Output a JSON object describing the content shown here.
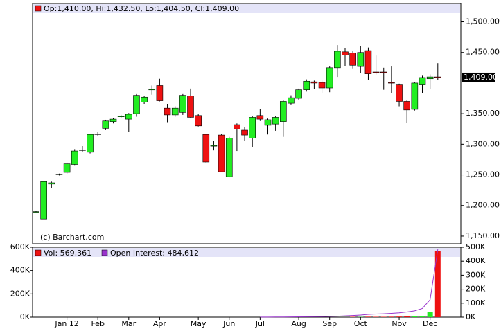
{
  "chart_data": [
    {
      "type": "candlestick",
      "legend": "Op:1,410.00, Hi:1,432.50, Lo:1,404.50, Cl:1,409.00",
      "credit": "(c) Barchart.com",
      "categories": [
        null,
        null,
        null,
        null,
        "Jan 12",
        null,
        null,
        null,
        "Feb",
        null,
        null,
        null,
        "Mar",
        null,
        null,
        null,
        "Apr",
        null,
        null,
        null,
        null,
        "May",
        null,
        null,
        null,
        "Jun",
        null,
        null,
        null,
        "Jul",
        null,
        null,
        null,
        null,
        "Aug",
        null,
        null,
        null,
        "Sep",
        null,
        null,
        null,
        "Oct",
        null,
        null,
        null,
        null,
        "Nov",
        null,
        null,
        null,
        "Dec",
        null
      ],
      "open": [
        1190,
        1178,
        1235,
        1250,
        1254,
        1267,
        1290,
        1287,
        1316,
        1326,
        1337,
        1345,
        1341,
        1350,
        1369,
        1389,
        1396,
        1359,
        1348,
        1352,
        1379,
        1347,
        1316,
        1298,
        1315,
        1247,
        1332,
        1323,
        1310,
        1347,
        1331,
        1333,
        1337,
        1367,
        1375,
        1389,
        1402,
        1401,
        1392,
        1425,
        1451,
        1449,
        1427,
        1453,
        1418,
        1418,
        1401,
        1397,
        1370,
        1357,
        1397,
        1407,
        1410
      ],
      "high": [
        1191,
        1239,
        1239,
        1252,
        1270,
        1292,
        1297,
        1317,
        1320,
        1340,
        1343,
        1348,
        1351,
        1382,
        1379,
        1396,
        1407,
        1366,
        1362,
        1382,
        1391,
        1350,
        1317,
        1305,
        1317,
        1312,
        1334,
        1328,
        1346,
        1358,
        1342,
        1346,
        1372,
        1380,
        1391,
        1406,
        1404,
        1404,
        1427,
        1462,
        1457,
        1452,
        1461,
        1458,
        1445,
        1425,
        1427,
        1399,
        1372,
        1402,
        1412,
        1414,
        1432.5
      ],
      "low": [
        1189,
        1178,
        1229,
        1249,
        1252,
        1265,
        1288,
        1285,
        1314,
        1323,
        1334,
        1343,
        1320,
        1345,
        1366,
        1381,
        1370,
        1336,
        1345,
        1348,
        1343,
        1329,
        1270,
        1290,
        1254,
        1246,
        1289,
        1305,
        1295,
        1338,
        1316,
        1322,
        1312,
        1365,
        1372,
        1386,
        1390,
        1384,
        1385,
        1410,
        1428,
        1424,
        1416,
        1405,
        1414,
        1389,
        1384,
        1362,
        1335,
        1355,
        1383,
        1390,
        1404.5
      ],
      "close": [
        1190,
        1239,
        1237,
        1251,
        1268,
        1289,
        1291,
        1316,
        1317,
        1338,
        1341,
        1346,
        1349,
        1380,
        1377,
        1390,
        1371,
        1348,
        1359,
        1380,
        1344,
        1330,
        1271,
        1298,
        1255,
        1310,
        1325,
        1315,
        1344,
        1341,
        1340,
        1344,
        1370,
        1376,
        1389,
        1403,
        1400,
        1392,
        1425,
        1452,
        1446,
        1429,
        1450,
        1415,
        1417,
        1417,
        1400,
        1370,
        1356,
        1400,
        1409,
        1410,
        1409
      ],
      "up_color": "#22ee22",
      "down_color": "#ee1111",
      "ylim": [
        1137.5,
        1530
      ],
      "yticks": [
        {
          "value": 1150,
          "label": "1,150.00"
        },
        {
          "value": 1200,
          "label": "1,200.00"
        },
        {
          "value": 1250,
          "label": "1,250.00"
        },
        {
          "value": 1300,
          "label": "1,300.00"
        },
        {
          "value": 1350,
          "label": "1,350.00"
        },
        {
          "value": 1450,
          "label": "1,450.00"
        },
        {
          "value": 1500,
          "label": "1,500.00"
        }
      ],
      "last_price": {
        "value": 1409,
        "label": "1,409.00"
      }
    },
    {
      "type": "bar",
      "series": [
        {
          "name": "Vol: 569,361",
          "color": "#ee1111",
          "values": [
            null,
            null,
            null,
            null,
            null,
            null,
            null,
            null,
            null,
            null,
            null,
            null,
            null,
            null,
            null,
            null,
            null,
            null,
            null,
            null,
            null,
            null,
            null,
            null,
            null,
            null,
            null,
            null,
            null,
            null,
            null,
            null,
            null,
            null,
            null,
            null,
            null,
            null,
            null,
            null,
            null,
            3000,
            2000,
            4000,
            3000,
            3000,
            4000,
            5000,
            6000,
            8000,
            9000,
            42000,
            569361
          ]
        },
        {
          "name": "Open Interest: 484,612",
          "color": "#9933cc",
          "axis": "y2",
          "values": [
            null,
            null,
            null,
            null,
            null,
            null,
            null,
            null,
            null,
            null,
            null,
            null,
            null,
            null,
            null,
            null,
            null,
            null,
            null,
            null,
            null,
            null,
            null,
            null,
            null,
            null,
            null,
            null,
            null,
            500,
            800,
            1000,
            1400,
            1800,
            2300,
            2900,
            3600,
            4500,
            5600,
            7000,
            9000,
            12000,
            15000,
            20000,
            22000,
            24000,
            27000,
            31000,
            37000,
            45000,
            62000,
            125000,
            484612
          ]
        }
      ],
      "ylim": [
        0,
        600000
      ],
      "yticks": [
        {
          "value": 0,
          "label": "0K"
        },
        {
          "value": 200000,
          "label": "200K"
        },
        {
          "value": 400000,
          "label": "400K"
        },
        {
          "value": 600000,
          "label": "600K"
        }
      ],
      "y2lim": [
        0,
        500000
      ],
      "y2ticks": [
        {
          "value": 0,
          "label": "0K"
        },
        {
          "value": 100000,
          "label": "100K"
        },
        {
          "value": 200000,
          "label": "200K"
        },
        {
          "value": 300000,
          "label": "300K"
        },
        {
          "value": 400000,
          "label": "400K"
        },
        {
          "value": 500000,
          "label": "500K"
        }
      ]
    }
  ]
}
